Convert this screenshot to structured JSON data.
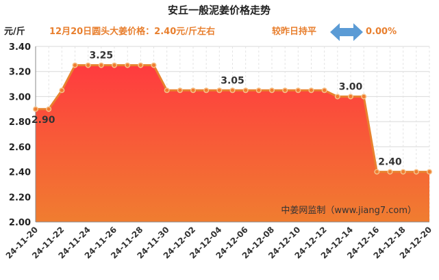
{
  "header": {
    "title": "安丘一般泥姜价格走势",
    "price_note": "12月20日圆头大姜价格：2.40元/斤左右",
    "compare_label": "较昨日持平",
    "change": "0.00%"
  },
  "watermark": "中姜网监制（www.jiang7.com）",
  "colors": {
    "accent": "#e87f2e",
    "line": "#e8822f",
    "fill_top": "#ff3b3f",
    "fill_bottom": "#f07d30",
    "arrow": "#5b9bd5"
  },
  "chart_data": {
    "type": "area",
    "title": "安丘一般泥姜价格走势",
    "ylabel": "元/斤",
    "xlabel": "",
    "ylim": [
      2.0,
      3.4
    ],
    "yticks": [
      2.0,
      2.2,
      2.4,
      2.6,
      2.8,
      3.0,
      3.2,
      3.4
    ],
    "ytick_labels": [
      "2.00",
      "2.20",
      "2.40",
      "2.60",
      "2.80",
      "3.00",
      "3.20",
      "3.40"
    ],
    "grid": true,
    "x": [
      "24-11-20",
      "24-11-21",
      "24-11-22",
      "24-11-23",
      "24-11-24",
      "24-11-25",
      "24-11-26",
      "24-11-27",
      "24-11-28",
      "24-11-29",
      "24-11-30",
      "24-12-01",
      "24-12-02",
      "24-12-03",
      "24-12-04",
      "24-12-05",
      "24-12-06",
      "24-12-07",
      "24-12-08",
      "24-12-09",
      "24-12-10",
      "24-12-11",
      "24-12-12",
      "24-12-13",
      "24-12-14",
      "24-12-15",
      "24-12-16",
      "24-12-17",
      "24-12-18",
      "24-12-19",
      "24-12-20"
    ],
    "x_tick_labels": [
      "24-11-20",
      "24-11-22",
      "24-11-24",
      "24-11-26",
      "24-11-28",
      "24-11-30",
      "24-12-02",
      "24-12-04",
      "24-12-06",
      "24-12-08",
      "24-12-10",
      "24-12-12",
      "24-12-14",
      "24-12-16",
      "24-12-18",
      "24-12-20"
    ],
    "values": [
      2.9,
      2.9,
      3.05,
      3.25,
      3.25,
      3.25,
      3.25,
      3.25,
      3.25,
      3.25,
      3.05,
      3.05,
      3.05,
      3.05,
      3.05,
      3.05,
      3.05,
      3.05,
      3.05,
      3.05,
      3.05,
      3.05,
      3.05,
      3.0,
      3.0,
      3.0,
      2.4,
      2.4,
      2.4,
      2.4,
      2.4
    ],
    "data_labels": [
      {
        "index": 1,
        "text": "2.90"
      },
      {
        "index": 5,
        "text": "3.25"
      },
      {
        "index": 15,
        "text": "3.05"
      },
      {
        "index": 24,
        "text": "3.00"
      },
      {
        "index": 27,
        "text": "2.40"
      }
    ]
  }
}
